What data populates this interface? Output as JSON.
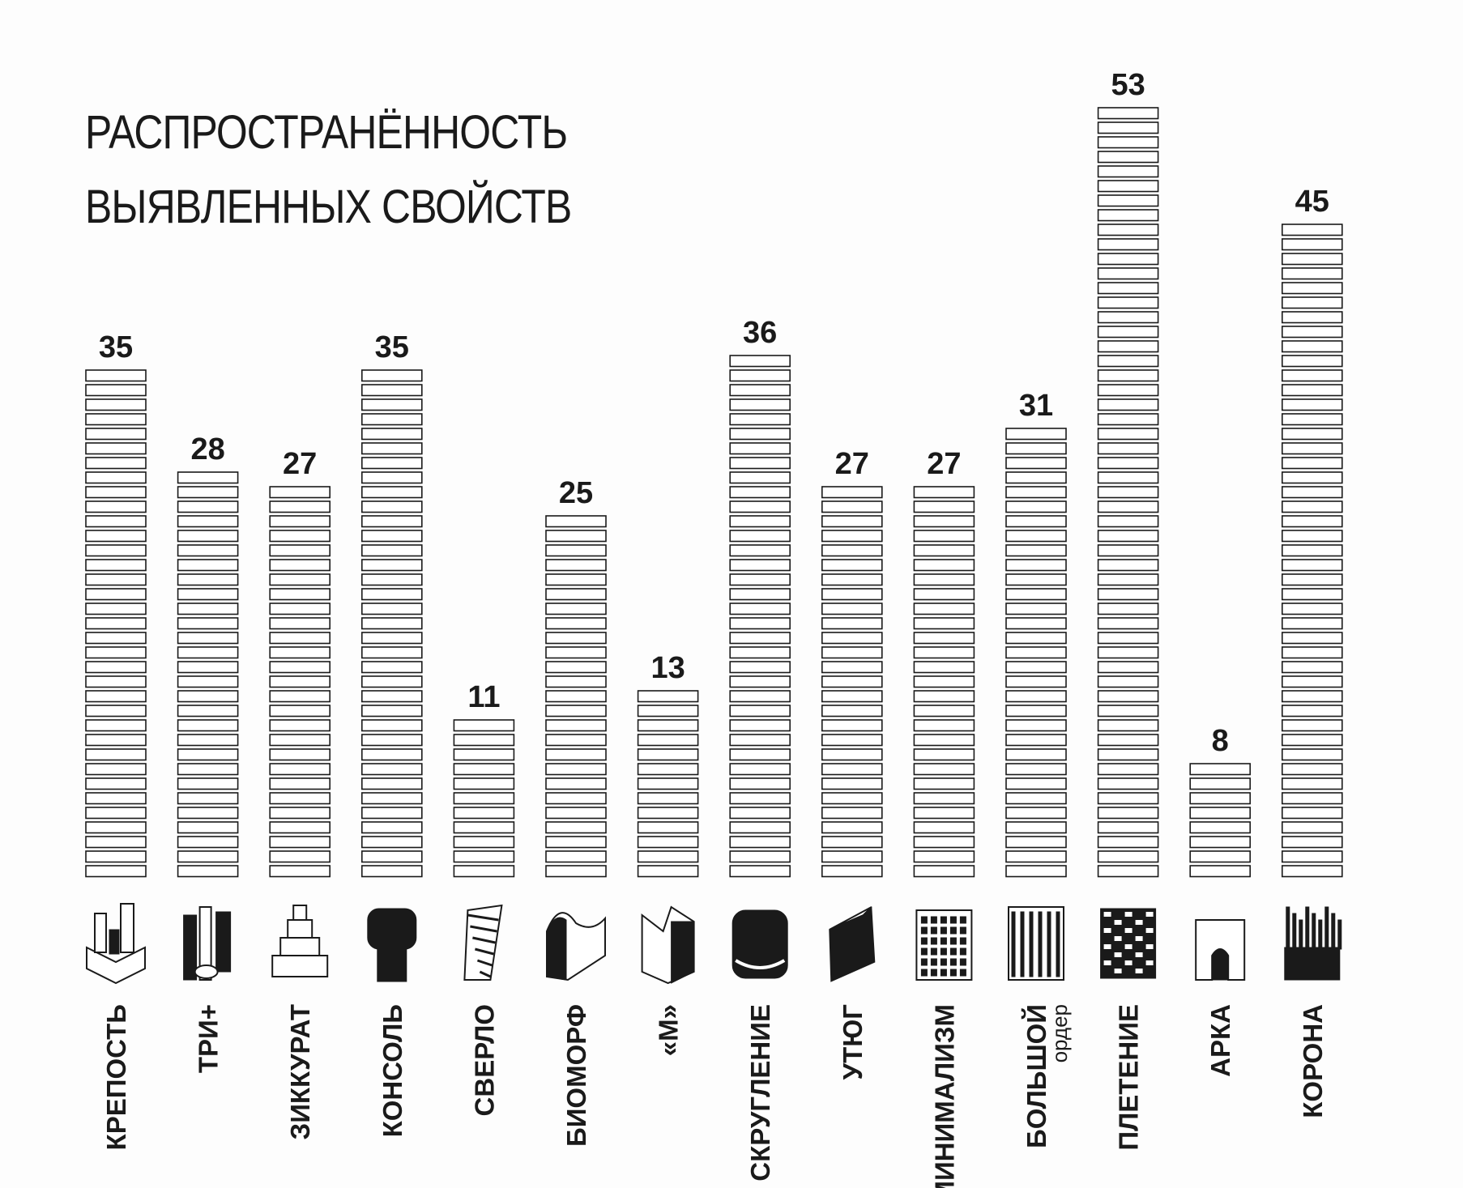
{
  "title_lines": [
    "РАСПРОСТРАНЁННОСТЬ",
    "ВЫЯВЛЕННЫХ СВОЙСТВ"
  ],
  "chart_data": {
    "type": "bar",
    "categories": [
      "КРЕПОСТЬ",
      "ТРИ+",
      "ЗИККУРАТ",
      "КОНСОЛЬ",
      "СВЕРЛО",
      "БИОМОРФ",
      "«М»",
      "СКРУГЛЕНИЕ",
      "УТЮГ",
      "МИНИМАЛИЗМ",
      "БОЛЬШОЙ",
      "ПЛЕТЕНИЕ",
      "АРКА",
      "КОРОНА"
    ],
    "category_sublabels": [
      "",
      "",
      "",
      "",
      "",
      "",
      "",
      "",
      "",
      "",
      "ордер",
      "",
      "",
      ""
    ],
    "values": [
      35,
      28,
      27,
      35,
      11,
      25,
      13,
      36,
      27,
      27,
      31,
      53,
      8,
      45
    ],
    "data_labels": [
      "35",
      "28",
      "27",
      "35",
      "11",
      "25",
      "13",
      "36",
      "27",
      "27",
      "31",
      "53",
      "8",
      "45"
    ],
    "icons": [
      "fortress-icon",
      "three-plus-icon",
      "ziggurat-icon",
      "console-icon",
      "drill-icon",
      "biomorph-icon",
      "m-shape-icon",
      "rounding-icon",
      "flatiron-icon",
      "minimalism-icon",
      "grand-order-icon",
      "weaving-icon",
      "arch-icon",
      "crown-icon"
    ],
    "xlabel": "",
    "ylabel": "",
    "grid": false,
    "legend": "none",
    "colors": {
      "outline": "#1a1a1a",
      "fill": "#ffffff",
      "background": "#fdfdfd"
    }
  }
}
